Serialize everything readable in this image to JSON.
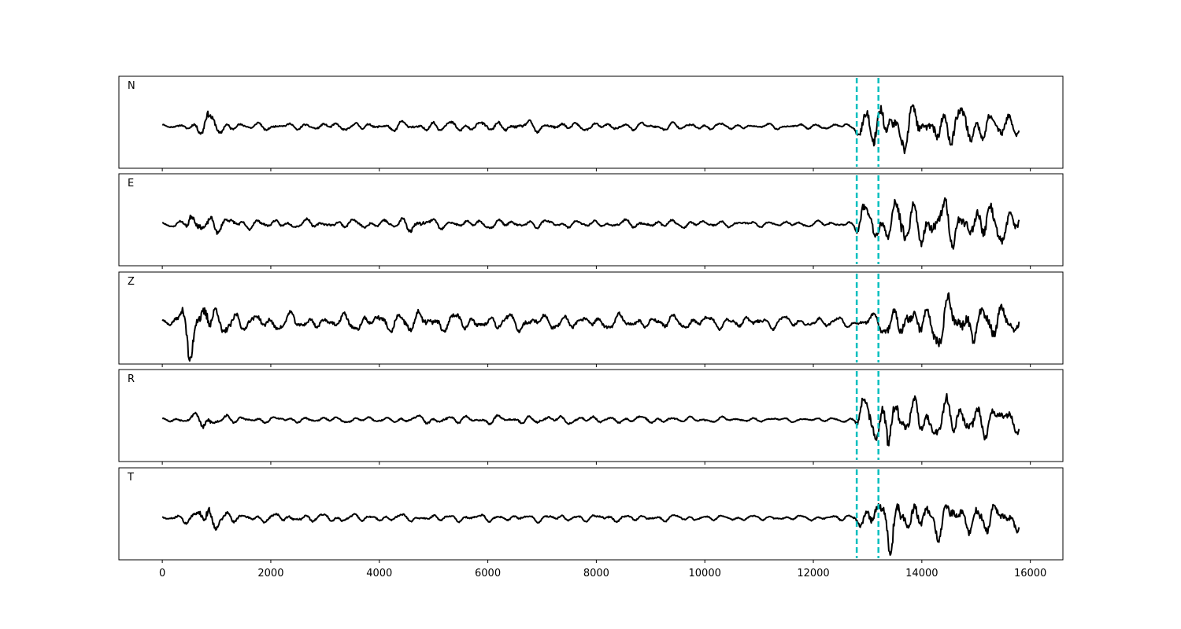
{
  "chart_data": {
    "type": "line",
    "title": "",
    "xlabel": "",
    "ylabel": "",
    "xlim": [
      -800,
      16600
    ],
    "xticks": [
      0,
      2000,
      4000,
      6000,
      8000,
      10000,
      12000,
      14000,
      16000
    ],
    "x_start": 0,
    "x_end": 15800,
    "grid": false,
    "legend": "none",
    "trace_color": "#000000",
    "marker_color": "#00bfbf",
    "markers": [
      12800,
      13200
    ],
    "panels": [
      {
        "name": "N",
        "envelope": [
          [
            0,
            0.05
          ],
          [
            500,
            0.1
          ],
          [
            700,
            0.25
          ],
          [
            800,
            0.55
          ],
          [
            900,
            0.3
          ],
          [
            1100,
            0.2
          ],
          [
            1400,
            0.12
          ],
          [
            2000,
            0.1
          ],
          [
            3000,
            0.1
          ],
          [
            4000,
            0.12
          ],
          [
            5000,
            0.15
          ],
          [
            6000,
            0.15
          ],
          [
            7000,
            0.15
          ],
          [
            8000,
            0.1
          ],
          [
            9000,
            0.12
          ],
          [
            10000,
            0.1
          ],
          [
            11000,
            0.07
          ],
          [
            12000,
            0.08
          ],
          [
            12750,
            0.08
          ],
          [
            12900,
            0.6
          ],
          [
            13150,
            0.7
          ],
          [
            13250,
            0.8
          ],
          [
            13350,
            1.0
          ],
          [
            13500,
            0.7
          ],
          [
            14000,
            0.5
          ],
          [
            14600,
            0.6
          ],
          [
            15000,
            0.5
          ],
          [
            15400,
            0.4
          ],
          [
            15800,
            0.3
          ]
        ],
        "seed": 11
      },
      {
        "name": "E",
        "envelope": [
          [
            0,
            0.05
          ],
          [
            400,
            0.12
          ],
          [
            500,
            0.4
          ],
          [
            700,
            0.3
          ],
          [
            1000,
            0.25
          ],
          [
            1500,
            0.15
          ],
          [
            2000,
            0.12
          ],
          [
            3000,
            0.12
          ],
          [
            4000,
            0.12
          ],
          [
            4700,
            0.25
          ],
          [
            5200,
            0.12
          ],
          [
            6000,
            0.12
          ],
          [
            7000,
            0.12
          ],
          [
            8000,
            0.1
          ],
          [
            9000,
            0.12
          ],
          [
            10000,
            0.1
          ],
          [
            11000,
            0.08
          ],
          [
            12000,
            0.08
          ],
          [
            12750,
            0.1
          ],
          [
            12900,
            0.55
          ],
          [
            13150,
            0.6
          ],
          [
            13400,
            0.6
          ],
          [
            13600,
            1.0
          ],
          [
            13800,
            0.7
          ],
          [
            14200,
            0.65
          ],
          [
            14800,
            0.6
          ],
          [
            15200,
            0.6
          ],
          [
            15500,
            0.5
          ],
          [
            15800,
            0.35
          ]
        ],
        "seed": 23
      },
      {
        "name": "Z",
        "envelope": [
          [
            0,
            0.1
          ],
          [
            300,
            0.2
          ],
          [
            400,
            0.6
          ],
          [
            500,
            1.0
          ],
          [
            600,
            0.7
          ],
          [
            750,
            0.8
          ],
          [
            1000,
            0.5
          ],
          [
            1300,
            0.35
          ],
          [
            1600,
            0.25
          ],
          [
            2000,
            0.25
          ],
          [
            3000,
            0.22
          ],
          [
            4000,
            0.25
          ],
          [
            4700,
            0.4
          ],
          [
            5200,
            0.25
          ],
          [
            6000,
            0.25
          ],
          [
            7000,
            0.22
          ],
          [
            8000,
            0.2
          ],
          [
            9000,
            0.2
          ],
          [
            10000,
            0.2
          ],
          [
            11000,
            0.18
          ],
          [
            12000,
            0.15
          ],
          [
            12800,
            0.15
          ],
          [
            13100,
            0.2
          ],
          [
            13400,
            0.5
          ],
          [
            14000,
            0.6
          ],
          [
            14600,
            0.7
          ],
          [
            15000,
            0.6
          ],
          [
            15400,
            0.55
          ],
          [
            15800,
            0.3
          ]
        ],
        "seed": 37
      },
      {
        "name": "R",
        "envelope": [
          [
            0,
            0.05
          ],
          [
            500,
            0.12
          ],
          [
            700,
            0.2
          ],
          [
            800,
            0.35
          ],
          [
            1000,
            0.15
          ],
          [
            1500,
            0.1
          ],
          [
            2000,
            0.08
          ],
          [
            3000,
            0.08
          ],
          [
            4000,
            0.08
          ],
          [
            5000,
            0.12
          ],
          [
            6000,
            0.12
          ],
          [
            7000,
            0.12
          ],
          [
            8000,
            0.1
          ],
          [
            9000,
            0.1
          ],
          [
            10000,
            0.08
          ],
          [
            11000,
            0.06
          ],
          [
            12000,
            0.06
          ],
          [
            12750,
            0.08
          ],
          [
            12900,
            0.6
          ],
          [
            13100,
            0.65
          ],
          [
            13250,
            0.7
          ],
          [
            13350,
            1.0
          ],
          [
            13500,
            0.7
          ],
          [
            14000,
            0.5
          ],
          [
            14600,
            0.6
          ],
          [
            15000,
            0.55
          ],
          [
            15400,
            0.4
          ],
          [
            15800,
            0.3
          ]
        ],
        "seed": 53
      },
      {
        "name": "T",
        "envelope": [
          [
            0,
            0.05
          ],
          [
            500,
            0.15
          ],
          [
            700,
            0.3
          ],
          [
            800,
            0.45
          ],
          [
            1000,
            0.3
          ],
          [
            1200,
            0.2
          ],
          [
            1500,
            0.12
          ],
          [
            2000,
            0.12
          ],
          [
            3000,
            0.12
          ],
          [
            4000,
            0.1
          ],
          [
            5000,
            0.1
          ],
          [
            6000,
            0.1
          ],
          [
            7000,
            0.1
          ],
          [
            8000,
            0.1
          ],
          [
            9000,
            0.1
          ],
          [
            10000,
            0.08
          ],
          [
            11000,
            0.07
          ],
          [
            12000,
            0.07
          ],
          [
            12750,
            0.1
          ],
          [
            12900,
            0.3
          ],
          [
            13100,
            0.45
          ],
          [
            13300,
            0.6
          ],
          [
            13450,
            1.0
          ],
          [
            13600,
            0.6
          ],
          [
            14000,
            0.45
          ],
          [
            14600,
            0.55
          ],
          [
            15000,
            0.5
          ],
          [
            15400,
            0.45
          ],
          [
            15800,
            0.3
          ]
        ],
        "seed": 71
      }
    ]
  }
}
